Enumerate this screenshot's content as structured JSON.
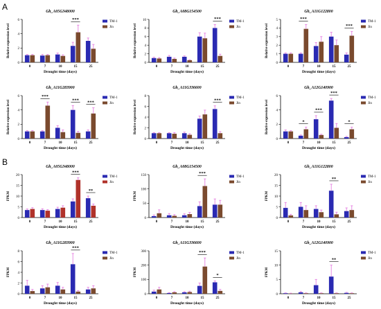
{
  "figure": {
    "panel_labels": [
      "A",
      "B"
    ]
  },
  "legend": {
    "series": [
      "TM-1",
      "Jin"
    ]
  },
  "colors": {
    "tm1": "#2a2ab2",
    "jin": "#7a4a2e",
    "jin_red": "#b0322a",
    "error": "#e57fe0"
  },
  "chart_data": [
    {
      "type": "bar",
      "title": "Gh_A05G348000",
      "xlabel": "Drought time (days)",
      "ylabel": "Relative expression level",
      "categories": [
        "0",
        "7",
        "10",
        "15",
        "25"
      ],
      "ylim": [
        0,
        6
      ],
      "yticks": [
        0,
        2,
        4,
        6
      ],
      "series": [
        {
          "name": "TM-1",
          "values": [
            1.0,
            0.95,
            1.1,
            2.3,
            3.0
          ],
          "errors": [
            0.1,
            0.15,
            0.2,
            0.5,
            0.4
          ]
        },
        {
          "name": "Jin",
          "values": [
            1.0,
            1.0,
            0.9,
            4.2,
            1.9
          ],
          "errors": [
            0.1,
            0.1,
            0.15,
            1.0,
            0.6
          ]
        }
      ],
      "significance": [
        {
          "category": "15",
          "label": "***"
        }
      ]
    },
    {
      "type": "bar",
      "title": "Gh_A08G154500",
      "xlabel": "Drought time (days)",
      "ylabel": "Relative expression level",
      "categories": [
        "0",
        "7",
        "10",
        "15",
        "25"
      ],
      "ylim": [
        0,
        10
      ],
      "yticks": [
        0,
        2,
        4,
        6,
        8,
        10
      ],
      "series": [
        {
          "name": "TM-1",
          "values": [
            1.0,
            1.3,
            1.3,
            6.0,
            8.0
          ],
          "errors": [
            0.2,
            0.3,
            0.2,
            0.9,
            0.8
          ]
        },
        {
          "name": "Jin",
          "values": [
            0.9,
            0.8,
            0.5,
            5.6,
            1.5
          ],
          "errors": [
            0.2,
            0.2,
            0.1,
            1.2,
            0.4
          ]
        }
      ],
      "significance": [
        {
          "category": "25",
          "label": "***"
        }
      ]
    },
    {
      "type": "bar",
      "title": "Gh_A11G122800",
      "xlabel": "Drought time (days)",
      "ylabel": "Relative expression level",
      "categories": [
        "0",
        "7",
        "10",
        "15",
        "25"
      ],
      "ylim": [
        0,
        5
      ],
      "yticks": [
        0,
        1,
        2,
        3,
        4,
        5
      ],
      "series": [
        {
          "name": "TM-1",
          "values": [
            1.0,
            1.0,
            1.9,
            3.0,
            0.9
          ],
          "errors": [
            0.1,
            0.1,
            0.4,
            0.5,
            0.2
          ]
        },
        {
          "name": "Jin",
          "values": [
            1.0,
            3.9,
            2.4,
            2.0,
            3.1
          ],
          "errors": [
            0.1,
            0.5,
            0.6,
            0.6,
            0.5
          ]
        }
      ],
      "significance": [
        {
          "category": "7",
          "label": "***"
        },
        {
          "category": "25",
          "label": "***"
        }
      ]
    },
    {
      "type": "bar",
      "title": "Gh_A11G283900",
      "xlabel": "Drought time (days)",
      "ylabel": "Relative expression level",
      "categories": [
        "0",
        "7",
        "10",
        "15",
        "25"
      ],
      "ylim": [
        0,
        6
      ],
      "yticks": [
        0,
        2,
        4,
        6
      ],
      "series": [
        {
          "name": "TM-1",
          "values": [
            1.0,
            1.0,
            1.5,
            4.0,
            1.0
          ],
          "errors": [
            0.1,
            0.1,
            0.3,
            0.6,
            0.2
          ]
        },
        {
          "name": "Jin",
          "values": [
            1.0,
            4.6,
            0.9,
            0.8,
            3.5
          ],
          "errors": [
            0.1,
            0.5,
            0.3,
            0.2,
            0.8
          ]
        }
      ],
      "significance": [
        {
          "category": "7",
          "label": "***"
        },
        {
          "category": "15",
          "label": "***"
        },
        {
          "category": "25",
          "label": "***"
        }
      ]
    },
    {
      "type": "bar",
      "title": "Gh_A11G336600",
      "xlabel": "Drought time (days)",
      "ylabel": "Relative expression level",
      "categories": [
        "0",
        "7",
        "10",
        "15",
        "25"
      ],
      "ylim": [
        0,
        8
      ],
      "yticks": [
        0,
        2,
        4,
        6,
        8
      ],
      "series": [
        {
          "name": "TM-1",
          "values": [
            1.0,
            1.0,
            1.0,
            3.7,
            5.5
          ],
          "errors": [
            0.1,
            0.1,
            0.2,
            0.5,
            0.6
          ]
        },
        {
          "name": "Jin",
          "values": [
            1.0,
            0.9,
            0.7,
            4.5,
            1.0
          ],
          "errors": [
            0.1,
            0.2,
            0.2,
            0.8,
            0.3
          ]
        }
      ],
      "significance": [
        {
          "category": "25",
          "label": "***"
        }
      ]
    },
    {
      "type": "bar",
      "title": "Gh_A12G140900",
      "xlabel": "Drought time (days)",
      "ylabel": "Relative expression level",
      "categories": [
        "0",
        "7",
        "10",
        "15",
        "25"
      ],
      "ylim": [
        0,
        6
      ],
      "yticks": [
        0,
        2,
        4,
        6
      ],
      "series": [
        {
          "name": "TM-1",
          "values": [
            1.0,
            0.4,
            2.7,
            5.3,
            0.2
          ],
          "errors": [
            0.2,
            0.1,
            0.5,
            0.3,
            0.1
          ]
        },
        {
          "name": "Jin",
          "values": [
            1.0,
            1.3,
            0.5,
            1.5,
            1.3
          ],
          "errors": [
            0.1,
            0.3,
            0.1,
            0.6,
            0.3
          ]
        }
      ],
      "significance": [
        {
          "category": "7",
          "label": "*"
        },
        {
          "category": "10",
          "label": "***"
        },
        {
          "category": "15",
          "label": "***"
        },
        {
          "category": "25",
          "label": "*"
        }
      ]
    },
    {
      "type": "bar",
      "title": "Gh_A05G348000",
      "xlabel": "Drought time (days)",
      "ylabel": "FPKM",
      "categories": [
        "0",
        "7",
        "10",
        "15",
        "25"
      ],
      "ylim": [
        0,
        20
      ],
      "yticks": [
        0,
        5,
        10,
        15,
        20
      ],
      "series": [
        {
          "name": "TM-1",
          "values": [
            3.5,
            3.5,
            4.0,
            7.5,
            9.0
          ],
          "errors": [
            0.5,
            0.6,
            0.8,
            1.2,
            1.0
          ]
        },
        {
          "name": "Jin",
          "values": [
            4.0,
            3.2,
            4.6,
            17.5,
            5.5
          ],
          "errors": [
            0.6,
            0.5,
            0.9,
            1.0,
            0.8
          ]
        }
      ],
      "significance": [
        {
          "category": "15",
          "label": "***"
        },
        {
          "category": "25",
          "label": "**"
        }
      ]
    },
    {
      "type": "bar",
      "title": "Gh_A08G154500",
      "xlabel": "Drought time (days)",
      "ylabel": "FPKM",
      "categories": [
        "0",
        "7",
        "10",
        "15",
        "25"
      ],
      "ylim": [
        0,
        150
      ],
      "yticks": [
        0,
        50,
        100,
        150
      ],
      "series": [
        {
          "name": "TM-1",
          "values": [
            5,
            8,
            8,
            40,
            45
          ],
          "errors": [
            4,
            6,
            5,
            15,
            20
          ]
        },
        {
          "name": "Jin",
          "values": [
            15,
            6,
            12,
            110,
            45
          ],
          "errors": [
            12,
            4,
            6,
            25,
            15
          ]
        }
      ],
      "significance": [
        {
          "category": "15",
          "label": "***"
        }
      ]
    },
    {
      "type": "bar",
      "title": "Gh_A11G122800",
      "xlabel": "Drought time (days)",
      "ylabel": "FPKM",
      "categories": [
        "0",
        "7",
        "10",
        "15",
        "25"
      ],
      "ylim": [
        0,
        20
      ],
      "yticks": [
        0,
        5,
        10,
        15,
        20
      ],
      "series": [
        {
          "name": "TM-1",
          "values": [
            4.5,
            5.0,
            4.0,
            12.5,
            3.0
          ],
          "errors": [
            2.5,
            2.0,
            1.5,
            3.0,
            1.5
          ]
        },
        {
          "name": "Jin",
          "values": [
            1.0,
            3.5,
            2.5,
            1.5,
            3.5
          ],
          "errors": [
            0.5,
            2.0,
            1.0,
            1.0,
            2.0
          ]
        }
      ],
      "significance": [
        {
          "category": "15",
          "label": "**"
        }
      ]
    },
    {
      "type": "bar",
      "title": "Gh_A11G283900",
      "xlabel": "Drought time (days)",
      "ylabel": "FPKM",
      "categories": [
        "0",
        "7",
        "10",
        "15",
        "25"
      ],
      "ylim": [
        0,
        8
      ],
      "yticks": [
        0,
        2,
        4,
        6,
        8
      ],
      "series": [
        {
          "name": "TM-1",
          "values": [
            1.5,
            1.0,
            1.5,
            5.5,
            0.8
          ],
          "errors": [
            1.0,
            0.5,
            0.6,
            2.0,
            0.4
          ]
        },
        {
          "name": "Jin",
          "values": [
            0.5,
            1.2,
            0.8,
            0.4,
            1.0
          ],
          "errors": [
            0.3,
            0.6,
            0.4,
            0.2,
            0.5
          ]
        }
      ],
      "significance": [
        {
          "category": "15",
          "label": "***"
        }
      ]
    },
    {
      "type": "bar",
      "title": "Gh_A11G336600",
      "xlabel": "Drought time (days)",
      "ylabel": "FPKM",
      "categories": [
        "0",
        "7",
        "10",
        "15",
        "25"
      ],
      "ylim": [
        0,
        300
      ],
      "yticks": [
        0,
        100,
        200,
        300
      ],
      "series": [
        {
          "name": "TM-1",
          "values": [
            15,
            5,
            10,
            55,
            80
          ],
          "errors": [
            10,
            3,
            5,
            20,
            10
          ]
        },
        {
          "name": "Jin",
          "values": [
            30,
            10,
            12,
            190,
            20
          ],
          "errors": [
            15,
            5,
            6,
            60,
            10
          ]
        }
      ],
      "significance": [
        {
          "category": "15",
          "label": "***"
        },
        {
          "category": "25",
          "label": "*"
        }
      ]
    },
    {
      "type": "bar",
      "title": "Gh_A12G140900",
      "xlabel": "Drought time (days)",
      "ylabel": "FPKM",
      "categories": [
        "0",
        "7",
        "10",
        "15",
        "25"
      ],
      "ylim": [
        0,
        15
      ],
      "yticks": [
        0,
        5,
        10,
        15
      ],
      "series": [
        {
          "name": "TM-1",
          "values": [
            0.2,
            0.5,
            3.0,
            6.0,
            0.3
          ],
          "errors": [
            0.1,
            0.3,
            2.0,
            4.0,
            0.2
          ]
        },
        {
          "name": "Jin",
          "values": [
            0.1,
            0.2,
            0.2,
            0.2,
            0.2
          ],
          "errors": [
            0.1,
            0.1,
            0.1,
            0.1,
            0.1
          ]
        }
      ],
      "significance": [
        {
          "category": "15",
          "label": "**"
        }
      ]
    }
  ]
}
